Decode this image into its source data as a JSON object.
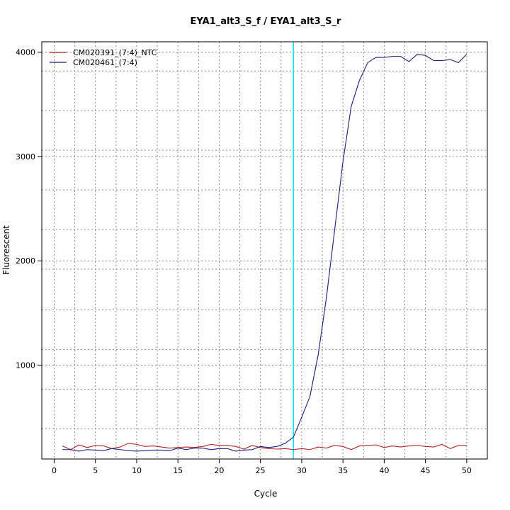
{
  "chart_data": {
    "type": "line",
    "title": "EYA1_alt3_S_f / EYA1_alt3_S_r",
    "xlabel": "Cycle",
    "ylabel": "Fluorescent",
    "xlim": [
      -1.5,
      52.5
    ],
    "ylim": [
      100,
      4100
    ],
    "x_ticks": [
      0,
      5,
      10,
      15,
      20,
      25,
      30,
      35,
      40,
      45,
      50
    ],
    "y_ticks": [
      1000,
      2000,
      3000,
      4000
    ],
    "grid": true,
    "grid_x": [
      2.5,
      7.5,
      12.5,
      17.5,
      22.5,
      27.5,
      32.5,
      37.5,
      42.5,
      47.5
    ],
    "grid_y": [
      390,
      770,
      1150,
      1530,
      1920,
      2300,
      2680,
      3060,
      3440,
      3820
    ],
    "threshold_x": 29,
    "threshold_color": "#00e5ee",
    "legend_position": "top-left",
    "x": [
      1,
      2,
      3,
      4,
      5,
      6,
      7,
      8,
      9,
      10,
      11,
      12,
      13,
      14,
      15,
      16,
      17,
      18,
      19,
      20,
      21,
      22,
      23,
      24,
      25,
      26,
      27,
      28,
      29,
      30,
      31,
      32,
      33,
      34,
      35,
      36,
      37,
      38,
      39,
      40,
      41,
      42,
      43,
      44,
      45,
      46,
      47,
      48,
      49,
      50
    ],
    "series": [
      {
        "name": "CM020391_(7:4)_NTC",
        "color": "#b22222",
        "values": [
          225,
          190,
          235,
          210,
          230,
          225,
          200,
          215,
          250,
          240,
          220,
          225,
          215,
          205,
          210,
          215,
          210,
          220,
          240,
          230,
          230,
          220,
          195,
          230,
          210,
          200,
          195,
          200,
          190,
          200,
          190,
          215,
          205,
          230,
          220,
          190,
          225,
          230,
          235,
          210,
          225,
          215,
          225,
          230,
          220,
          215,
          240,
          200,
          230,
          230
        ]
      },
      {
        "name": "CM020461_(7:4)",
        "color": "#1a1a80",
        "values": [
          190,
          190,
          175,
          190,
          185,
          180,
          200,
          190,
          180,
          175,
          180,
          185,
          185,
          180,
          205,
          190,
          205,
          205,
          190,
          200,
          200,
          175,
          185,
          190,
          220,
          210,
          220,
          250,
          310,
          500,
          700,
          1100,
          1650,
          2300,
          2950,
          3480,
          3730,
          3900,
          3950,
          3950,
          3960,
          3960,
          3910,
          3980,
          3970,
          3920,
          3920,
          3930,
          3900,
          3980
        ]
      }
    ]
  }
}
